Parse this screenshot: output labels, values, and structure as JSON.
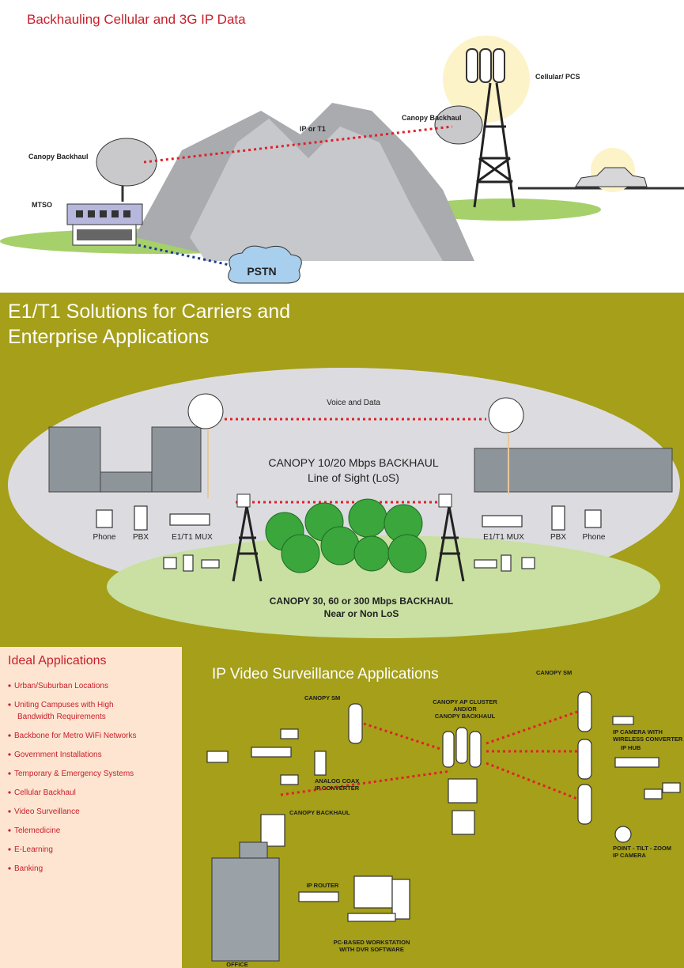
{
  "backhaul": {
    "title": "Backhauling Cellular and 3G IP Data",
    "labels": {
      "cellular": "Cellular/ PCS",
      "canopy_right": "Canopy Backhaul",
      "link": "IP or T1",
      "canopy_left": "Canopy Backhaul",
      "mtso": "MTSO",
      "pstn": "PSTN"
    }
  },
  "e1t1": {
    "title_lines": [
      "E1/T1 Solutions for Carriers and",
      "Enterprise Applications"
    ],
    "labels": {
      "link": "Voice and Data",
      "backhaul_lines": [
        "CANOPY 10/20 Mbps BACKHAUL",
        "Line of Sight (LoS)"
      ],
      "left_phone": "Phone",
      "left_pbx": "PBX",
      "left_mux": "E1/T1 MUX",
      "right_mux": "E1/T1 MUX",
      "right_pbx": "PBX",
      "right_phone": "Phone",
      "nlos_lines": [
        "CANOPY 30, 60 or 300 Mbps BACKHAUL",
        "Near or Non LoS"
      ]
    }
  },
  "applications": {
    "title": "Ideal Applications",
    "items": [
      [
        "Urban/Suburban Locations"
      ],
      [
        "Uniting Campuses with High",
        "Bandwidth Requirements"
      ],
      [
        "Backbone for Metro WiFi Networks"
      ],
      [
        "Government Installations"
      ],
      [
        "Temporary & Emergency Systems"
      ],
      [
        "Cellular Backhaul"
      ],
      [
        "Video Surveillance"
      ],
      [
        "Telemedicine"
      ],
      [
        "E-Learning"
      ],
      [
        "Banking"
      ]
    ]
  },
  "surveillance": {
    "title": "IP Video Surveillance Applications",
    "labels": {
      "sm_left": [
        "CANOPY SM"
      ],
      "sm_right": [
        "CANOPY SM"
      ],
      "ap_cluster": [
        "CANOPY AP CLUSTER",
        "AND/OR",
        "CANOPY BACKHAUL"
      ],
      "ip_camera": [
        "IP CAMERA WITH",
        "WIRELESS CONVERTER"
      ],
      "ip_hub": [
        "IP HUB"
      ],
      "analog": [
        "ANALOG COAX",
        "IP CONVERTER"
      ],
      "backhaul": [
        "CANOPY BACKHAUL"
      ],
      "ptz": [
        "POINT - TILT - ZOOM",
        "IP CAMERA"
      ],
      "router": [
        "IP ROUTER"
      ],
      "workstation": [
        "PC-BASED WORKSTATION",
        "WITH DVR SOFTWARE"
      ],
      "office": [
        "OFFICE"
      ]
    }
  }
}
